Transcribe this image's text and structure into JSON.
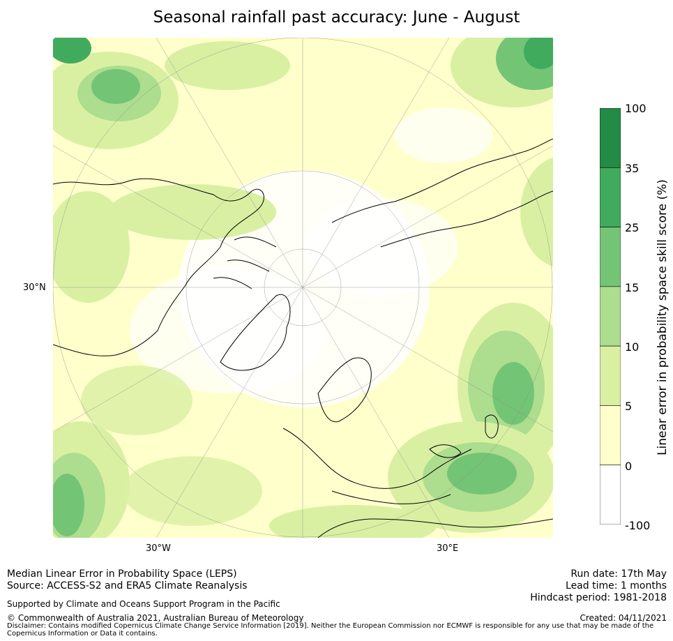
{
  "title": "Seasonal rainfall past accuracy: June - August",
  "map": {
    "projection": "north-polar-stereographic",
    "lat_label": "30°N",
    "lon_labels": [
      "30°W",
      "30°E"
    ],
    "gridlines": "on",
    "land_outline": "coastlines"
  },
  "colorbar": {
    "title": "Linear error in probability space skill score (%)",
    "ticks": [
      "100",
      "35",
      "25",
      "15",
      "10",
      "5",
      "0",
      "-100"
    ],
    "bins": [
      {
        "range": "35 to 100",
        "color": "#238b45"
      },
      {
        "range": "25 to 35",
        "color": "#41ab5d"
      },
      {
        "range": "15 to 25",
        "color": "#74c476"
      },
      {
        "range": "10 to 15",
        "color": "#addd8e"
      },
      {
        "range": "5 to 10",
        "color": "#d9f0a3"
      },
      {
        "range": "0 to 5",
        "color": "#ffffcc"
      },
      {
        "range": "-100 to 0",
        "color": "#ffffff"
      }
    ]
  },
  "footer": {
    "left_line1": "Median Linear Error in Probability Space (LEPS)",
    "left_line2": "Source: ACCESS-S2 and ERA5 Climate Reanalysis",
    "support": "Supported by Climate and Oceans Support Program in the Pacific",
    "copyright": "© Commonwealth of Australia 2021, Australian Bureau of Meteorology",
    "disclaimer": "Disclaimer: Contains modified Copernicus Climate Change Service Information [2019]. Neither the European Commission nor ECMWF is responsible for any use that may be made of the Copernicus Information or Data it contains.",
    "run_date": "Run date: 17th May",
    "lead_time": "Lead time: 1 months",
    "hindcast": "Hindcast period: 1981-2018",
    "created": "Created: 04/11/2021"
  }
}
